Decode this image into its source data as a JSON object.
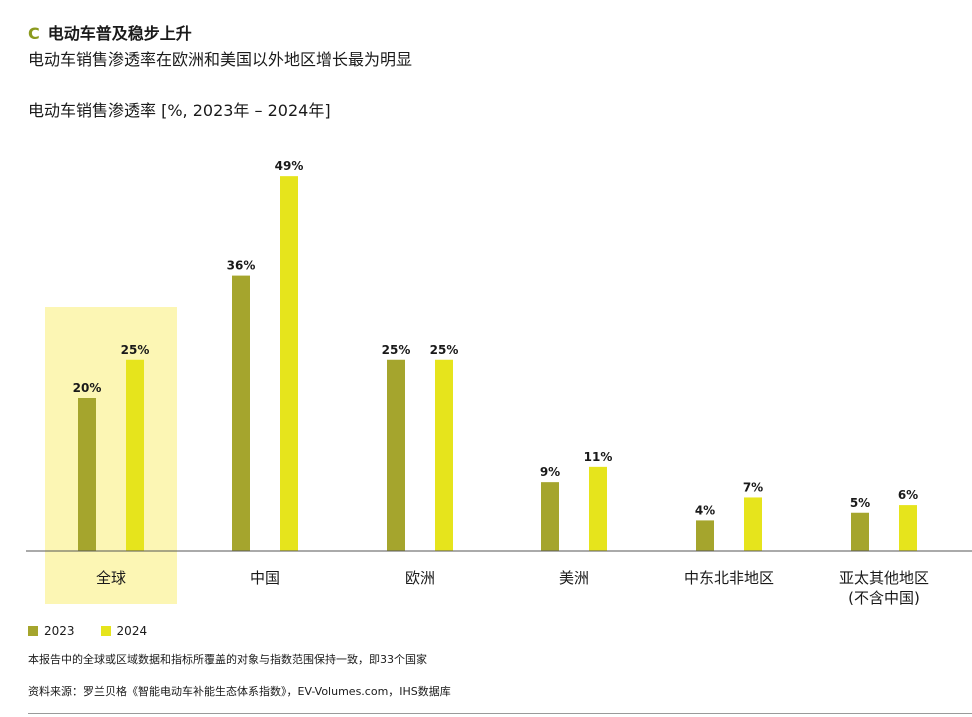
{
  "section": {
    "letter": "C",
    "heading": "电动车普及稳步上升"
  },
  "subtitle": "电动车销售渗透率在欧洲和美国以外地区增长最为明显",
  "colors": {
    "series_2023": "#a5a52d",
    "series_2024": "#e6e41c",
    "highlight": "#fcf6b4",
    "accent": "#8b9a1e"
  },
  "chart_data": {
    "type": "bar",
    "title": "电动车销售渗透率 [%, 2023年 – 2024年]",
    "categories": [
      "全球",
      "中国",
      "欧洲",
      "美洲",
      "中东北非地区",
      "亚太其他地区\n(不含中国)"
    ],
    "series": [
      {
        "name": "2023",
        "values": [
          20,
          36,
          25,
          9,
          4,
          5
        ]
      },
      {
        "name": "2024",
        "values": [
          25,
          49,
          25,
          11,
          7,
          6
        ]
      }
    ],
    "value_suffix": "%",
    "highlight_category": "全球",
    "legend": "bottom-left",
    "grid": false
  },
  "footnote": "本报告中的全球或区域数据和指标所覆盖的对象与指数范围保持一致，即33个国家",
  "source": "资料来源：罗兰贝格《智能电动车补能生态体系指数》，EV-Volumes.com，IHS数据库"
}
